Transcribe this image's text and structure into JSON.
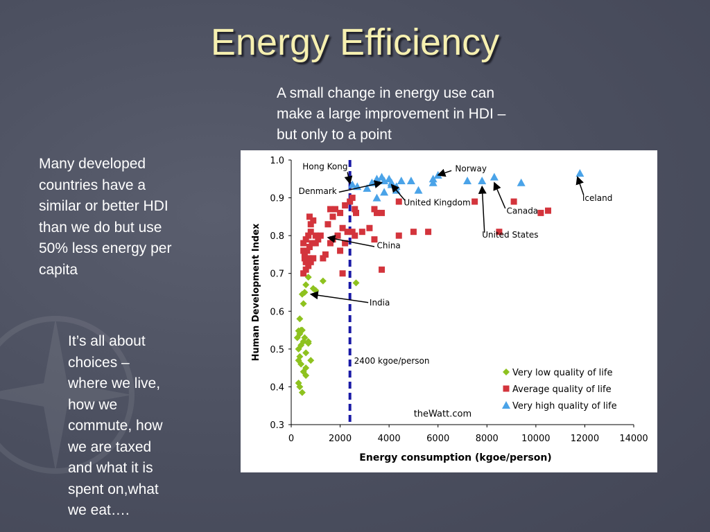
{
  "slide": {
    "title": "Energy Efficiency",
    "callout": "A small change in energy use can\nmake a large improvement in HDI –\nbut only to a point",
    "left_text": "Many developed\ncountries have a\nsimilar or better HDI\nthan we do but use\n50% less energy per\ncapita",
    "choices_text": "It’s all about\nchoices –\nwhere we live,\nhow we\ncommute, how\nwe are taxed\nand what it is\nspent on,what\nwe eat…."
  },
  "chart_data": {
    "type": "scatter",
    "title": "",
    "xlabel": "Energy consumption (kgoe/person)",
    "ylabel": "Human Development Index",
    "xlim": [
      0,
      14000
    ],
    "ylim": [
      0.3,
      1.0
    ],
    "x_ticks": [
      "0",
      "2000",
      "4000",
      "6000",
      "8000",
      "10000",
      "12000",
      "14000"
    ],
    "y_ticks": [
      "0.3",
      "0.4",
      "0.5",
      "0.6",
      "0.7",
      "0.8",
      "0.9",
      "1.0"
    ],
    "grid": false,
    "legend_position": "bottom-right",
    "source": "theWatt.com",
    "threshold": {
      "x": 2400,
      "label": "2400 kgoe/person",
      "color": "#1a1aa6"
    },
    "series": [
      {
        "name": "Very low quality of life",
        "color": "#8ec21f",
        "marker": "diamond",
        "points": [
          [
            300,
            0.548
          ],
          [
            350,
            0.58
          ],
          [
            250,
            0.53
          ],
          [
            400,
            0.51
          ],
          [
            450,
            0.55
          ],
          [
            300,
            0.5
          ],
          [
            350,
            0.48
          ],
          [
            500,
            0.52
          ],
          [
            600,
            0.49
          ],
          [
            700,
            0.515
          ],
          [
            300,
            0.47
          ],
          [
            400,
            0.46
          ],
          [
            500,
            0.44
          ],
          [
            600,
            0.43
          ],
          [
            300,
            0.41
          ],
          [
            350,
            0.4
          ],
          [
            450,
            0.385
          ],
          [
            600,
            0.45
          ],
          [
            800,
            0.47
          ],
          [
            700,
            0.52
          ],
          [
            550,
            0.53
          ],
          [
            500,
            0.62
          ],
          [
            550,
            0.65
          ],
          [
            600,
            0.67
          ],
          [
            700,
            0.69
          ],
          [
            900,
            0.66
          ],
          [
            1000,
            0.655
          ],
          [
            1300,
            0.68
          ],
          [
            450,
            0.645
          ],
          [
            2650,
            0.675
          ],
          [
            400,
            0.55
          ],
          [
            350,
            0.54
          ]
        ]
      },
      {
        "name": "Average quality of life",
        "color": "#d3343c",
        "marker": "square",
        "points": [
          [
            500,
            0.7
          ],
          [
            600,
            0.71
          ],
          [
            700,
            0.72
          ],
          [
            800,
            0.73
          ],
          [
            900,
            0.74
          ],
          [
            550,
            0.75
          ],
          [
            650,
            0.76
          ],
          [
            750,
            0.77
          ],
          [
            850,
            0.78
          ],
          [
            500,
            0.78
          ],
          [
            600,
            0.79
          ],
          [
            700,
            0.8
          ],
          [
            800,
            0.81
          ],
          [
            1000,
            0.8
          ],
          [
            1100,
            0.79
          ],
          [
            1200,
            0.8
          ],
          [
            500,
            0.76
          ],
          [
            550,
            0.74
          ],
          [
            600,
            0.73
          ],
          [
            700,
            0.74
          ],
          [
            800,
            0.83
          ],
          [
            750,
            0.85
          ],
          [
            900,
            0.84
          ],
          [
            1000,
            0.78
          ],
          [
            1400,
            0.75
          ],
          [
            1600,
            0.78
          ],
          [
            1700,
            0.85
          ],
          [
            1800,
            0.87
          ],
          [
            1900,
            0.8
          ],
          [
            2000,
            0.86
          ],
          [
            2100,
            0.82
          ],
          [
            1500,
            0.83
          ],
          [
            1600,
            0.87
          ],
          [
            2000,
            0.76
          ],
          [
            2300,
            0.81
          ],
          [
            2200,
            0.88
          ],
          [
            2400,
            0.89
          ],
          [
            2500,
            0.9
          ],
          [
            2600,
            0.87
          ],
          [
            2650,
            0.86
          ],
          [
            2500,
            0.81
          ],
          [
            2600,
            0.8
          ],
          [
            2200,
            0.78
          ],
          [
            2100,
            0.7
          ],
          [
            2900,
            0.81
          ],
          [
            3200,
            0.82
          ],
          [
            3400,
            0.79
          ],
          [
            3400,
            0.87
          ],
          [
            3500,
            0.86
          ],
          [
            3700,
            0.86
          ],
          [
            3700,
            0.71
          ],
          [
            4400,
            0.89
          ],
          [
            4400,
            0.8
          ],
          [
            5000,
            0.81
          ],
          [
            5600,
            0.81
          ],
          [
            7500,
            0.89
          ],
          [
            8500,
            0.81
          ],
          [
            9100,
            0.89
          ],
          [
            10200,
            0.86
          ],
          [
            10500,
            0.866
          ],
          [
            1300,
            0.74
          ],
          [
            1700,
            0.79
          ]
        ]
      },
      {
        "name": "Very high quality of life",
        "color": "#4aa3e8",
        "marker": "triangle",
        "points": [
          [
            2500,
            0.935
          ],
          [
            2700,
            0.93
          ],
          [
            3100,
            0.925
          ],
          [
            3300,
            0.94
          ],
          [
            3500,
            0.95
          ],
          [
            3700,
            0.955
          ],
          [
            3800,
            0.945
          ],
          [
            4000,
            0.95
          ],
          [
            4100,
            0.94
          ],
          [
            4300,
            0.93
          ],
          [
            4500,
            0.945
          ],
          [
            4900,
            0.945
          ],
          [
            5200,
            0.92
          ],
          [
            5800,
            0.95
          ],
          [
            5800,
            0.94
          ],
          [
            6000,
            0.96
          ],
          [
            7200,
            0.945
          ],
          [
            7800,
            0.945
          ],
          [
            8300,
            0.955
          ],
          [
            9400,
            0.94
          ],
          [
            11800,
            0.965
          ],
          [
            3800,
            0.915
          ],
          [
            3500,
            0.9
          ],
          [
            4300,
            0.92
          ],
          [
            4100,
            0.935
          ]
        ]
      }
    ],
    "annotations": [
      {
        "label": "Hong Kong",
        "text_at": [
          460,
          0.975
        ],
        "arrow_from": [
          2300,
          0.968
        ],
        "arrow_to": [
          2400,
          0.938
        ]
      },
      {
        "label": "Denmark",
        "text_at": [
          300,
          0.91
        ],
        "arrow_from": [
          1950,
          0.915
        ],
        "arrow_to": [
          3700,
          0.94
        ]
      },
      {
        "label": "Norway",
        "text_at": [
          6700,
          0.97
        ],
        "arrow_from": [
          6550,
          0.972
        ],
        "arrow_to": [
          6000,
          0.96
        ]
      },
      {
        "label": "United Kingdom",
        "text_at": [
          4600,
          0.88
        ],
        "arrow_from": [
          4650,
          0.893
        ],
        "arrow_to": [
          4100,
          0.935
        ]
      },
      {
        "label": "Canada",
        "text_at": [
          8800,
          0.858
        ],
        "arrow_from": [
          8750,
          0.872
        ],
        "arrow_to": [
          8300,
          0.94
        ]
      },
      {
        "label": "Iceland",
        "text_at": [
          11900,
          0.892
        ],
        "arrow_from": [
          11950,
          0.908
        ],
        "arrow_to": [
          11700,
          0.955
        ]
      },
      {
        "label": "United States",
        "text_at": [
          7800,
          0.795
        ],
        "arrow_from": [
          7900,
          0.808
        ],
        "arrow_to": [
          7800,
          0.93
        ]
      },
      {
        "label": "China",
        "text_at": [
          3500,
          0.766
        ],
        "arrow_from": [
          3400,
          0.771
        ],
        "arrow_to": [
          1500,
          0.795
        ]
      },
      {
        "label": "India",
        "text_at": [
          3200,
          0.615
        ],
        "arrow_from": [
          3150,
          0.623
        ],
        "arrow_to": [
          800,
          0.645
        ]
      }
    ]
  }
}
